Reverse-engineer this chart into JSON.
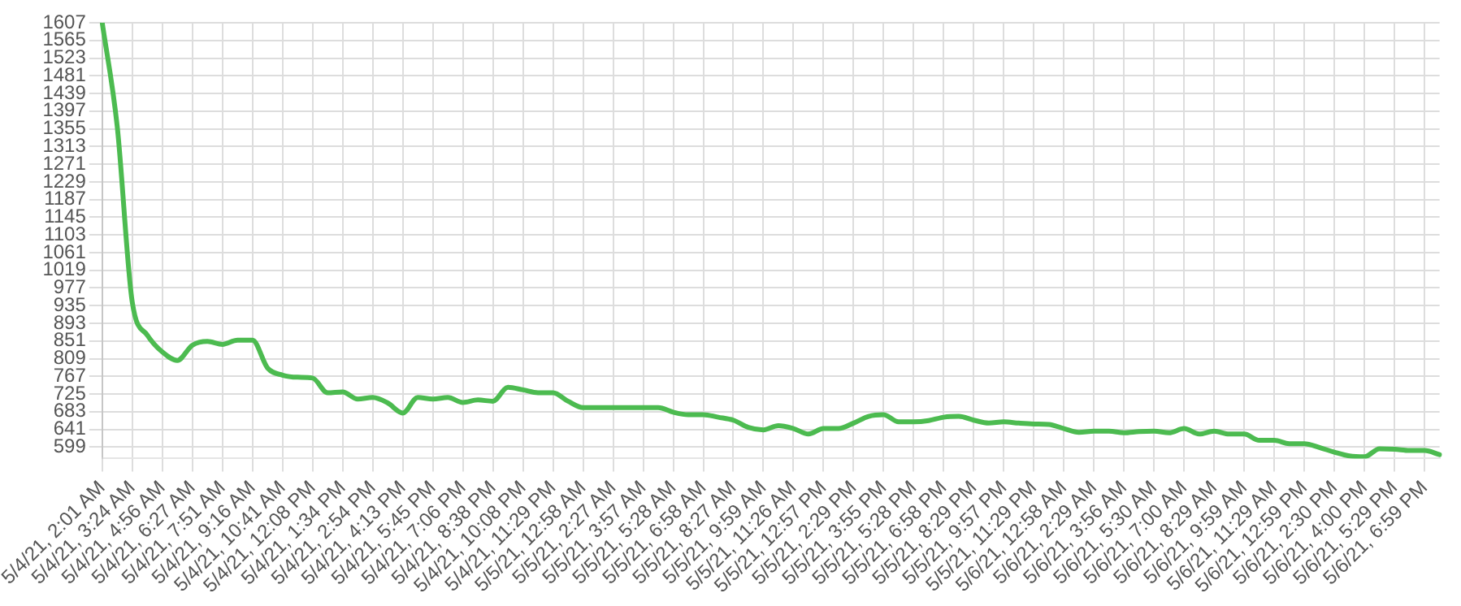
{
  "chart_data": {
    "type": "line",
    "categories": [
      "5/4/21, 2:01 AM",
      null,
      "5/4/21, 3:24 AM",
      null,
      "5/4/21, 4:56 AM",
      null,
      "5/4/21, 6:27 AM",
      null,
      "5/4/21, 7:51 AM",
      null,
      "5/4/21, 9:16 AM",
      null,
      "5/4/21, 10:41 AM",
      null,
      "5/4/21, 12:08 PM",
      null,
      "5/4/21, 1:34 PM",
      null,
      "5/4/21, 2:54 PM",
      null,
      "5/4/21, 4:13 PM",
      null,
      "5/4/21, 5:45 PM",
      null,
      "5/4/21, 7:06 PM",
      null,
      "5/4/21, 8:38 PM",
      null,
      "5/4/21, 10:08 PM",
      null,
      "5/4/21, 11:29 PM",
      null,
      "5/5/21, 12:58 AM",
      null,
      "5/5/21, 2:27 AM",
      null,
      "5/5/21, 3:57 AM",
      null,
      "5/5/21, 5:28 AM",
      null,
      "5/5/21, 6:58 AM",
      null,
      "5/5/21, 8:27 AM",
      null,
      "5/5/21, 9:59 AM",
      null,
      "5/5/21, 11:26 AM",
      null,
      "5/5/21, 12:57 PM",
      null,
      "5/5/21, 2:29 PM",
      null,
      "5/5/21, 3:55 PM",
      null,
      "5/5/21, 5:28 PM",
      null,
      "5/5/21, 6:58 PM",
      null,
      "5/5/21, 8:29 PM",
      null,
      "5/5/21, 9:57 PM",
      null,
      "5/5/21, 11:29 PM",
      null,
      "5/6/21, 12:58 AM",
      null,
      "5/6/21, 2:29 AM",
      null,
      "5/6/21, 3:56 AM",
      null,
      "5/6/21, 5:30 AM",
      null,
      "5/6/21, 7:00 AM",
      null,
      "5/6/21, 8:29 AM",
      null,
      "5/6/21, 9:59 AM",
      null,
      "5/6/21, 11:29 AM",
      null,
      "5/6/21, 12:59 PM",
      null,
      "5/6/21, 2:30 PM",
      null,
      "5/6/21, 4:00 PM",
      null,
      "5/6/21, 5:29 PM",
      null,
      "5/6/21, 6:59 PM",
      null
    ],
    "values": [
      1607,
      1360,
      943,
      865,
      825,
      805,
      841,
      850,
      843,
      853,
      853,
      787,
      770,
      765,
      763,
      728,
      730,
      713,
      717,
      704,
      680,
      717,
      713,
      717,
      705,
      711,
      708,
      741,
      735,
      728,
      728,
      708,
      693,
      693,
      693,
      693,
      693,
      693,
      682,
      676,
      676,
      670,
      663,
      646,
      640,
      650,
      643,
      630,
      643,
      643,
      656,
      672,
      676,
      659,
      659,
      662,
      670,
      672,
      663,
      656,
      659,
      656,
      654,
      653,
      643,
      634,
      637,
      637,
      633,
      636,
      637,
      633,
      643,
      630,
      637,
      630,
      630,
      615,
      615,
      607,
      607,
      598,
      587,
      578,
      576,
      595,
      594,
      591,
      591,
      581
    ],
    "color": "#4cbb50",
    "marker": "none",
    "line_style": "solid",
    "grid": true,
    "legend": false,
    "ylim": [
      572,
      1607
    ],
    "yticks": [
      599,
      641,
      683,
      725,
      767,
      809,
      851,
      893,
      935,
      977,
      1019,
      1061,
      1103,
      1145,
      1187,
      1229,
      1271,
      1313,
      1355,
      1397,
      1439,
      1481,
      1523,
      1565,
      1607
    ]
  }
}
